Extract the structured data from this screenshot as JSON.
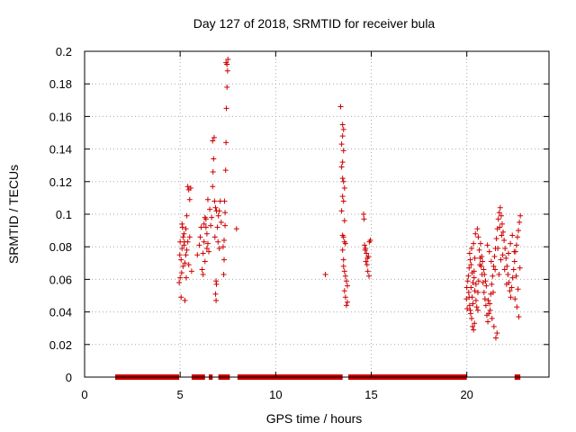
{
  "chart_data": {
    "type": "scatter",
    "title": "Day 127 of 2018, SRMTID for receiver bula",
    "xlabel": "GPS time / hours",
    "ylabel": "SRMTID / TECUs",
    "xlim": [
      0,
      24.3
    ],
    "ylim": [
      0,
      0.2
    ],
    "xticks": [
      0,
      5,
      10,
      15,
      20
    ],
    "xtick_labels": [
      "0",
      "5",
      "10",
      "15",
      "20"
    ],
    "yticks": [
      0,
      0.02,
      0.04,
      0.06,
      0.08,
      0.1,
      0.12,
      0.14,
      0.16,
      0.18,
      0.2
    ],
    "ytick_labels": [
      "0",
      "0.02",
      "0.04",
      "0.06",
      "0.08",
      "0.1",
      "0.12",
      "0.14",
      "0.16",
      "0.18",
      "0.2"
    ],
    "grid": true,
    "marker": "+",
    "color": "#cc0000",
    "series": [
      {
        "name": "SRMTID",
        "points": [
          [
            4.95,
            0.058
          ],
          [
            5.0,
            0.061
          ],
          [
            5.05,
            0.072
          ],
          [
            5.1,
            0.079
          ],
          [
            5.0,
            0.083
          ],
          [
            5.15,
            0.086
          ],
          [
            5.2,
            0.088
          ],
          [
            5.1,
            0.094
          ],
          [
            5.05,
            0.049
          ],
          [
            5.25,
            0.047
          ],
          [
            5.3,
            0.075
          ],
          [
            5.35,
            0.078
          ],
          [
            5.4,
            0.083
          ],
          [
            5.3,
            0.091
          ],
          [
            5.35,
            0.099
          ],
          [
            5.4,
            0.117
          ],
          [
            5.45,
            0.115
          ],
          [
            5.5,
            0.109
          ],
          [
            5.55,
            0.116
          ],
          [
            5.5,
            0.086
          ],
          [
            5.45,
            0.069
          ],
          [
            5.6,
            0.065
          ],
          [
            5.2,
            0.081
          ],
          [
            5.25,
            0.07
          ],
          [
            5.15,
            0.068
          ],
          [
            4.98,
            0.075
          ],
          [
            5.08,
            0.064
          ],
          [
            5.22,
            0.083
          ],
          [
            5.32,
            0.061
          ],
          [
            5.12,
            0.092
          ],
          [
            5.9,
            0.075
          ],
          [
            6.0,
            0.081
          ],
          [
            6.05,
            0.086
          ],
          [
            6.1,
            0.092
          ],
          [
            6.15,
            0.066
          ],
          [
            6.2,
            0.063
          ],
          [
            6.25,
            0.094
          ],
          [
            6.3,
            0.098
          ],
          [
            6.35,
            0.097
          ],
          [
            6.4,
            0.088
          ],
          [
            6.45,
            0.082
          ],
          [
            6.5,
            0.077
          ],
          [
            6.2,
            0.076
          ],
          [
            6.3,
            0.071
          ],
          [
            6.4,
            0.079
          ],
          [
            6.35,
            0.092
          ],
          [
            6.25,
            0.083
          ],
          [
            6.45,
            0.109
          ],
          [
            6.55,
            0.103
          ],
          [
            6.6,
            0.093
          ],
          [
            6.65,
            0.098
          ],
          [
            6.7,
            0.117
          ],
          [
            6.72,
            0.126
          ],
          [
            6.75,
            0.134
          ],
          [
            6.7,
            0.145
          ],
          [
            6.78,
            0.147
          ],
          [
            6.8,
            0.108
          ],
          [
            6.85,
            0.104
          ],
          [
            6.9,
            0.102
          ],
          [
            6.82,
            0.086
          ],
          [
            6.88,
            0.059
          ],
          [
            6.9,
            0.057
          ],
          [
            6.85,
            0.051
          ],
          [
            6.88,
            0.047
          ],
          [
            6.95,
            0.092
          ],
          [
            7.0,
            0.099
          ],
          [
            7.05,
            0.102
          ],
          [
            7.1,
            0.108
          ],
          [
            7.15,
            0.095
          ],
          [
            6.98,
            0.083
          ],
          [
            7.05,
            0.079
          ],
          [
            7.28,
            0.063
          ],
          [
            7.3,
            0.072
          ],
          [
            7.35,
            0.093
          ],
          [
            7.38,
            0.127
          ],
          [
            7.4,
            0.144
          ],
          [
            7.42,
            0.165
          ],
          [
            7.45,
            0.178
          ],
          [
            7.48,
            0.188
          ],
          [
            7.45,
            0.192
          ],
          [
            7.5,
            0.195
          ],
          [
            7.4,
            0.193
          ],
          [
            7.32,
            0.108
          ],
          [
            7.35,
            0.101
          ],
          [
            7.3,
            0.084
          ],
          [
            7.25,
            0.08
          ],
          [
            7.95,
            0.091
          ],
          [
            12.6,
            0.063
          ],
          [
            13.4,
            0.166
          ],
          [
            13.5,
            0.155
          ],
          [
            13.55,
            0.152
          ],
          [
            13.5,
            0.148
          ],
          [
            13.45,
            0.143
          ],
          [
            13.55,
            0.139
          ],
          [
            13.5,
            0.132
          ],
          [
            13.45,
            0.129
          ],
          [
            13.5,
            0.122
          ],
          [
            13.55,
            0.12
          ],
          [
            13.6,
            0.116
          ],
          [
            13.5,
            0.111
          ],
          [
            13.55,
            0.108
          ],
          [
            13.45,
            0.102
          ],
          [
            13.6,
            0.096
          ],
          [
            13.5,
            0.087
          ],
          [
            13.55,
            0.086
          ],
          [
            13.6,
            0.083
          ],
          [
            13.65,
            0.082
          ],
          [
            13.5,
            0.078
          ],
          [
            13.55,
            0.068
          ],
          [
            13.6,
            0.065
          ],
          [
            13.65,
            0.062
          ],
          [
            13.7,
            0.059
          ],
          [
            13.75,
            0.056
          ],
          [
            13.6,
            0.053
          ],
          [
            13.65,
            0.049
          ],
          [
            13.75,
            0.046
          ],
          [
            13.7,
            0.044
          ],
          [
            13.55,
            0.072
          ],
          [
            14.6,
            0.1
          ],
          [
            14.62,
            0.097
          ],
          [
            14.65,
            0.081
          ],
          [
            14.7,
            0.079
          ],
          [
            14.75,
            0.076
          ],
          [
            14.8,
            0.073
          ],
          [
            14.72,
            0.071
          ],
          [
            14.78,
            0.069
          ],
          [
            14.85,
            0.074
          ],
          [
            14.9,
            0.083
          ],
          [
            14.82,
            0.065
          ],
          [
            14.88,
            0.062
          ],
          [
            14.95,
            0.084
          ],
          [
            14.68,
            0.078
          ],
          [
            19.98,
            0.048
          ],
          [
            20.0,
            0.055
          ],
          [
            20.05,
            0.059
          ],
          [
            20.1,
            0.052
          ],
          [
            20.15,
            0.044
          ],
          [
            20.2,
            0.039
          ],
          [
            20.25,
            0.036
          ],
          [
            20.3,
            0.031
          ],
          [
            20.35,
            0.029
          ],
          [
            20.4,
            0.033
          ],
          [
            20.08,
            0.062
          ],
          [
            20.12,
            0.067
          ],
          [
            20.18,
            0.072
          ],
          [
            20.22,
            0.069
          ],
          [
            20.28,
            0.064
          ],
          [
            20.32,
            0.058
          ],
          [
            20.38,
            0.061
          ],
          [
            20.42,
            0.053
          ],
          [
            20.48,
            0.047
          ],
          [
            20.52,
            0.043
          ],
          [
            20.58,
            0.041
          ],
          [
            20.15,
            0.076
          ],
          [
            20.25,
            0.079
          ],
          [
            20.35,
            0.082
          ],
          [
            20.45,
            0.088
          ],
          [
            20.55,
            0.091
          ],
          [
            20.6,
            0.086
          ],
          [
            20.65,
            0.078
          ],
          [
            20.7,
            0.073
          ],
          [
            20.75,
            0.068
          ],
          [
            20.8,
            0.063
          ],
          [
            20.85,
            0.058
          ],
          [
            20.9,
            0.052
          ],
          [
            20.95,
            0.048
          ],
          [
            21.0,
            0.044
          ],
          [
            21.05,
            0.038
          ],
          [
            21.1,
            0.034
          ],
          [
            21.15,
            0.039
          ],
          [
            21.2,
            0.045
          ],
          [
            21.25,
            0.051
          ],
          [
            21.3,
            0.057
          ],
          [
            21.35,
            0.062
          ],
          [
            21.4,
            0.068
          ],
          [
            21.45,
            0.074
          ],
          [
            21.5,
            0.079
          ],
          [
            21.55,
            0.085
          ],
          [
            21.6,
            0.091
          ],
          [
            21.65,
            0.097
          ],
          [
            21.7,
            0.101
          ],
          [
            21.75,
            0.104
          ],
          [
            21.8,
            0.099
          ],
          [
            21.85,
            0.094
          ],
          [
            21.9,
            0.089
          ],
          [
            21.95,
            0.084
          ],
          [
            22.0,
            0.079
          ],
          [
            22.05,
            0.073
          ],
          [
            22.1,
            0.068
          ],
          [
            22.15,
            0.063
          ],
          [
            22.2,
            0.058
          ],
          [
            22.25,
            0.053
          ],
          [
            22.3,
            0.049
          ],
          [
            22.35,
            0.055
          ],
          [
            22.4,
            0.061
          ],
          [
            22.45,
            0.066
          ],
          [
            22.5,
            0.071
          ],
          [
            22.55,
            0.077
          ],
          [
            22.6,
            0.081
          ],
          [
            22.65,
            0.086
          ],
          [
            22.7,
            0.09
          ],
          [
            22.75,
            0.095
          ],
          [
            22.8,
            0.099
          ],
          [
            22.72,
            0.037
          ],
          [
            22.62,
            0.043
          ],
          [
            22.52,
            0.048
          ],
          [
            21.52,
            0.024
          ],
          [
            21.58,
            0.027
          ],
          [
            21.42,
            0.031
          ],
          [
            21.32,
            0.036
          ],
          [
            21.22,
            0.041
          ],
          [
            21.12,
            0.047
          ],
          [
            21.02,
            0.056
          ],
          [
            20.92,
            0.063
          ],
          [
            20.82,
            0.071
          ],
          [
            20.72,
            0.082
          ],
          [
            20.62,
            0.059
          ],
          [
            20.42,
            0.073
          ],
          [
            20.32,
            0.045
          ],
          [
            20.22,
            0.055
          ],
          [
            20.12,
            0.049
          ],
          [
            20.02,
            0.042
          ],
          [
            21.68,
            0.063
          ],
          [
            21.78,
            0.072
          ],
          [
            21.88,
            0.075
          ],
          [
            21.98,
            0.066
          ],
          [
            22.08,
            0.057
          ],
          [
            22.18,
            0.076
          ],
          [
            22.28,
            0.082
          ],
          [
            22.38,
            0.087
          ],
          [
            22.48,
            0.077
          ],
          [
            22.58,
            0.062
          ],
          [
            22.68,
            0.054
          ],
          [
            22.78,
            0.067
          ],
          [
            21.72,
            0.092
          ],
          [
            21.82,
            0.087
          ],
          [
            21.62,
            0.079
          ],
          [
            21.48,
            0.066
          ],
          [
            21.38,
            0.052
          ],
          [
            21.28,
            0.071
          ],
          [
            21.18,
            0.077
          ],
          [
            21.08,
            0.081
          ],
          [
            20.98,
            0.059
          ],
          [
            20.88,
            0.066
          ],
          [
            20.78,
            0.074
          ],
          [
            20.68,
            0.069
          ],
          [
            20.58,
            0.052
          ],
          [
            20.48,
            0.057
          ],
          [
            20.38,
            0.065
          ],
          [
            20.28,
            0.049
          ],
          [
            20.18,
            0.041
          ]
        ],
        "zero_intervals": [
          [
            1.6,
            4.95
          ],
          [
            5.6,
            6.3
          ],
          [
            6.5,
            6.7
          ],
          [
            7.0,
            7.6
          ],
          [
            8.0,
            13.5
          ],
          [
            13.8,
            20.0
          ],
          [
            22.5,
            22.8
          ]
        ]
      }
    ]
  }
}
